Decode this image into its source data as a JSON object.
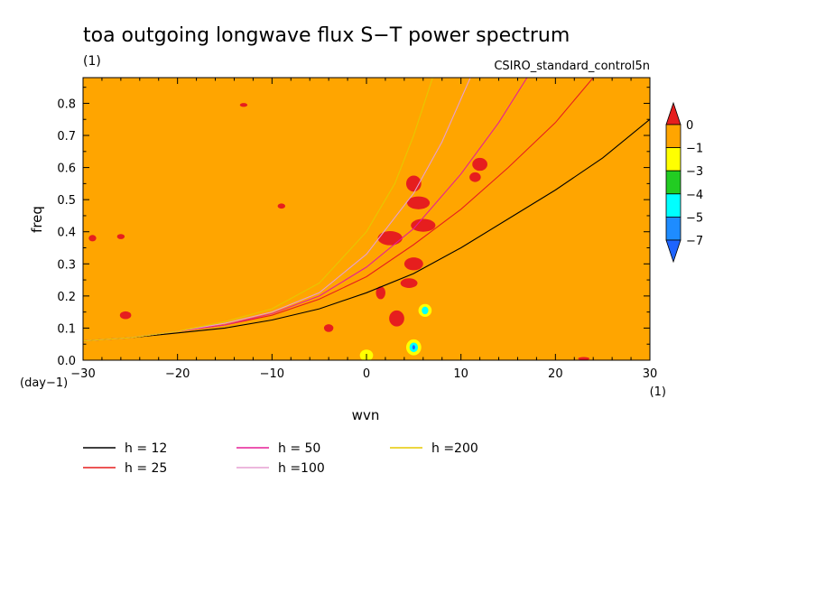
{
  "chart_data": {
    "type": "heatmap",
    "title": "toa outgoing longwave flux S−T power spectrum",
    "units_label": "(1)",
    "subtitle": "CSIRO_standard_control5n",
    "xlabel": "wvn",
    "ylabel": "freq",
    "x_unit_label": "(1)",
    "y_unit_label": "(day−1)",
    "xlim": [
      -30,
      30
    ],
    "ylim": [
      0,
      0.88
    ],
    "x_ticks": [
      -30,
      -20,
      -10,
      0,
      10,
      20,
      30
    ],
    "x_tick_labels": [
      "−30",
      "−20",
      "−10",
      "0",
      "10",
      "20",
      "30"
    ],
    "y_ticks": [
      0,
      0.1,
      0.2,
      0.3,
      0.4,
      0.5,
      0.6,
      0.7,
      0.8
    ],
    "y_tick_labels": [
      "0.0",
      "0.1",
      "0.2",
      "0.3",
      "0.4",
      "0.5",
      "0.6",
      "0.7",
      "0.8"
    ],
    "grid": false,
    "background_level": "-1 to 0",
    "colorbar": {
      "labels": [
        "0",
        "−1",
        "−3",
        "−4",
        "−5",
        "−7"
      ],
      "colors": [
        "#e61e1e",
        "#ffa500",
        "#ffff00",
        "#22cc22",
        "#00ffff",
        "#1e8cff",
        "#1e64ff"
      ]
    },
    "series": [
      {
        "name": "h = 12",
        "legend_label": "h = 12",
        "color": "#000000",
        "x": [
          -30,
          -25,
          -20,
          -15,
          -10,
          -5,
          0,
          5,
          10,
          15,
          20,
          25,
          30
        ],
        "y": [
          0.06,
          0.07,
          0.085,
          0.1,
          0.125,
          0.16,
          0.21,
          0.27,
          0.35,
          0.44,
          0.53,
          0.63,
          0.75
        ]
      },
      {
        "name": "h = 25",
        "legend_label": "h = 25",
        "color": "#e61e1e",
        "x": [
          -30,
          -25,
          -20,
          -15,
          -10,
          -5,
          0,
          5,
          10,
          15,
          20,
          24
        ],
        "y": [
          0.06,
          0.07,
          0.09,
          0.11,
          0.14,
          0.19,
          0.26,
          0.36,
          0.47,
          0.6,
          0.74,
          0.88
        ]
      },
      {
        "name": "h = 50",
        "legend_label": "h = 50",
        "color": "#e61e96",
        "x": [
          -30,
          -25,
          -20,
          -15,
          -10,
          -5,
          0,
          5,
          10,
          14,
          17
        ],
        "y": [
          0.06,
          0.07,
          0.09,
          0.11,
          0.145,
          0.2,
          0.29,
          0.41,
          0.58,
          0.74,
          0.88
        ]
      },
      {
        "name": "h =100",
        "legend_label": "h =100",
        "color": "#e6a0d2",
        "x": [
          -30,
          -25,
          -20,
          -15,
          -10,
          -5,
          0,
          5,
          8,
          11
        ],
        "y": [
          0.06,
          0.07,
          0.09,
          0.115,
          0.15,
          0.21,
          0.33,
          0.52,
          0.68,
          0.88
        ]
      },
      {
        "name": "h =200",
        "legend_label": "h =200",
        "color": "#e6c800",
        "x": [
          -30,
          -25,
          -20,
          -15,
          -10,
          -5,
          0,
          3,
          5,
          7
        ],
        "y": [
          0.06,
          0.07,
          0.09,
          0.12,
          0.16,
          0.24,
          0.4,
          0.55,
          0.7,
          0.88
        ]
      }
    ],
    "contour_patches": [
      {
        "level": "0",
        "color": "#e61e1e",
        "x": 5.0,
        "y": 0.55,
        "dx": 0.8,
        "dy": 0.025
      },
      {
        "level": "0",
        "color": "#e61e1e",
        "x": 5.5,
        "y": 0.49,
        "dx": 1.2,
        "dy": 0.02
      },
      {
        "level": "0",
        "color": "#e61e1e",
        "x": 12.0,
        "y": 0.61,
        "dx": 0.8,
        "dy": 0.02
      },
      {
        "level": "0",
        "color": "#e61e1e",
        "x": 11.5,
        "y": 0.57,
        "dx": 0.6,
        "dy": 0.015
      },
      {
        "level": "0",
        "color": "#e61e1e",
        "x": 2.5,
        "y": 0.38,
        "dx": 1.3,
        "dy": 0.022
      },
      {
        "level": "0",
        "color": "#e61e1e",
        "x": 6.0,
        "y": 0.42,
        "dx": 1.3,
        "dy": 0.02
      },
      {
        "level": "0",
        "color": "#e61e1e",
        "x": 5.0,
        "y": 0.3,
        "dx": 1.0,
        "dy": 0.02
      },
      {
        "level": "0",
        "color": "#e61e1e",
        "x": 4.5,
        "y": 0.24,
        "dx": 0.9,
        "dy": 0.015
      },
      {
        "level": "0",
        "color": "#e61e1e",
        "x": 3.2,
        "y": 0.13,
        "dx": 0.8,
        "dy": 0.025
      },
      {
        "level": "0",
        "color": "#e61e1e",
        "x": 1.5,
        "y": 0.21,
        "dx": 0.5,
        "dy": 0.02
      },
      {
        "level": "0",
        "color": "#e61e1e",
        "x": -4.0,
        "y": 0.1,
        "dx": 0.5,
        "dy": 0.012
      },
      {
        "level": "0",
        "color": "#e61e1e",
        "x": -25.5,
        "y": 0.14,
        "dx": 0.6,
        "dy": 0.012
      },
      {
        "level": "0",
        "color": "#e61e1e",
        "x": -29.0,
        "y": 0.38,
        "dx": 0.4,
        "dy": 0.01
      },
      {
        "level": "0",
        "color": "#e61e1e",
        "x": -26.0,
        "y": 0.385,
        "dx": 0.4,
        "dy": 0.008
      },
      {
        "level": "0",
        "color": "#e61e1e",
        "x": -9.0,
        "y": 0.48,
        "dx": 0.4,
        "dy": 0.008
      },
      {
        "level": "0",
        "color": "#e61e1e",
        "x": -13.0,
        "y": 0.795,
        "dx": 0.4,
        "dy": 0.006
      },
      {
        "level": "0",
        "color": "#e61e1e",
        "x": 23.0,
        "y": 0.005,
        "dx": 0.6,
        "dy": 0.005
      },
      {
        "level": "-3",
        "color": "#ffff00",
        "x": 0.0,
        "y": 0.015,
        "dx": 0.7,
        "dy": 0.018
      },
      {
        "level": "-3",
        "color": "#ffff00",
        "x": 6.2,
        "y": 0.155,
        "dx": 0.7,
        "dy": 0.02
      },
      {
        "level": "-3",
        "color": "#ffff00",
        "x": 5.0,
        "y": 0.04,
        "dx": 0.8,
        "dy": 0.025
      },
      {
        "level": "-5",
        "color": "#00ffff",
        "x": 6.2,
        "y": 0.155,
        "dx": 0.35,
        "dy": 0.012
      },
      {
        "level": "-5",
        "color": "#00ffff",
        "x": 5.0,
        "y": 0.04,
        "dx": 0.45,
        "dy": 0.015
      },
      {
        "level": "-7",
        "color": "#1e64ff",
        "x": 5.0,
        "y": 0.04,
        "dx": 0.15,
        "dy": 0.007
      }
    ]
  }
}
